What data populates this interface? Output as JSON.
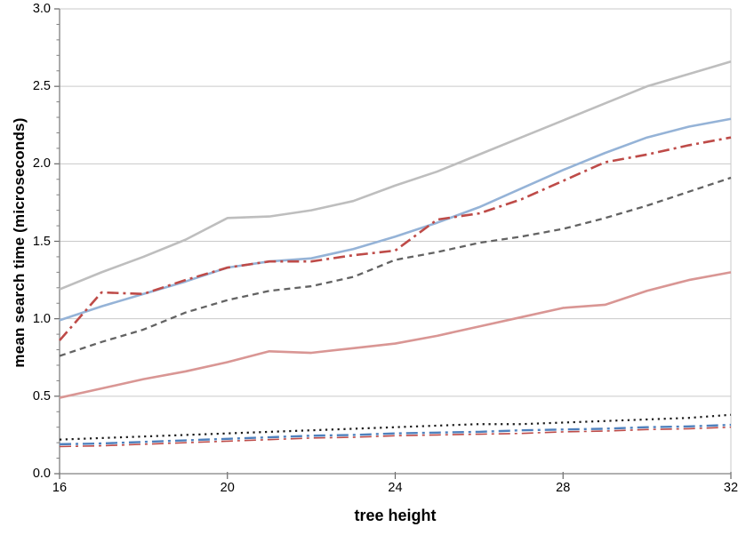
{
  "chart_data": {
    "type": "line",
    "title": "",
    "xlabel": "tree height",
    "ylabel": "mean search time (microseconds)",
    "xlim": [
      16,
      32
    ],
    "ylim": [
      0.0,
      3.0
    ],
    "x_ticks": [
      "16",
      "20",
      "24",
      "28",
      "32"
    ],
    "x_tick_values": [
      16,
      20,
      24,
      28,
      32
    ],
    "y_ticks": [
      "0.0",
      "0.5",
      "1.0",
      "1.5",
      "2.0",
      "2.5",
      "3.0"
    ],
    "y_tick_values": [
      0.0,
      0.5,
      1.0,
      1.5,
      2.0,
      2.5,
      3.0
    ],
    "y_minor_step": 0.1,
    "grid": "horizontal",
    "legend_position": "none",
    "grid_color": "#C9C9C9",
    "axis_color": "#808080",
    "border_color": "#C9C9C9",
    "x": [
      16,
      17,
      18,
      19,
      20,
      21,
      22,
      23,
      24,
      25,
      26,
      27,
      28,
      29,
      30,
      31,
      32
    ],
    "series": [
      {
        "name": "light-gray-solid",
        "color": "#BEBEBE",
        "style": "solid",
        "width": 2.6,
        "values": [
          1.19,
          1.3,
          1.4,
          1.51,
          1.65,
          1.66,
          1.7,
          1.76,
          1.86,
          1.95,
          2.06,
          2.17,
          2.28,
          2.39,
          2.5,
          2.58,
          2.66
        ]
      },
      {
        "name": "dark-gray-dashed",
        "color": "#636363",
        "style": "dashed",
        "width": 2.3,
        "values": [
          0.76,
          0.85,
          0.93,
          1.04,
          1.12,
          1.18,
          1.21,
          1.27,
          1.38,
          1.43,
          1.49,
          1.53,
          1.58,
          1.65,
          1.73,
          1.82,
          1.91
        ]
      },
      {
        "name": "salmon-solid",
        "color": "#D99694",
        "style": "solid",
        "width": 2.6,
        "values": [
          0.49,
          0.55,
          0.61,
          0.66,
          0.72,
          0.79,
          0.78,
          0.81,
          0.84,
          0.89,
          0.95,
          1.01,
          1.07,
          1.09,
          1.18,
          1.25,
          1.3
        ]
      },
      {
        "name": "light-blue-solid",
        "color": "#95B3D7",
        "style": "solid",
        "width": 2.6,
        "values": [
          0.99,
          1.08,
          1.16,
          1.24,
          1.33,
          1.37,
          1.39,
          1.45,
          1.53,
          1.62,
          1.72,
          1.84,
          1.96,
          2.07,
          2.17,
          2.24,
          2.29
        ]
      },
      {
        "name": "dark-red-dash-dot",
        "color": "#BE4B48",
        "style": "dash-dot",
        "width": 2.6,
        "values": [
          0.86,
          1.17,
          1.16,
          1.25,
          1.33,
          1.37,
          1.37,
          1.41,
          1.44,
          1.64,
          1.68,
          1.77,
          1.89,
          2.01,
          2.06,
          2.12,
          2.17
        ]
      },
      {
        "name": "black-dotted",
        "color": "#1A1A1A",
        "style": "dotted",
        "width": 2.2,
        "values": [
          0.22,
          0.23,
          0.24,
          0.25,
          0.26,
          0.27,
          0.28,
          0.29,
          0.3,
          0.31,
          0.32,
          0.32,
          0.33,
          0.34,
          0.35,
          0.36,
          0.38
        ]
      },
      {
        "name": "red-dash-dot-thin",
        "color": "#BE4B48",
        "style": "dash-dot",
        "width": 1.6,
        "values": [
          0.175,
          0.18,
          0.19,
          0.2,
          0.21,
          0.22,
          0.23,
          0.235,
          0.245,
          0.25,
          0.255,
          0.26,
          0.27,
          0.275,
          0.285,
          0.29,
          0.3
        ]
      },
      {
        "name": "medium-blue-dash-dot",
        "color": "#4F81BD",
        "style": "dash-dot",
        "width": 2.4,
        "values": [
          0.19,
          0.195,
          0.205,
          0.215,
          0.225,
          0.235,
          0.245,
          0.25,
          0.26,
          0.265,
          0.27,
          0.28,
          0.285,
          0.29,
          0.3,
          0.305,
          0.315
        ]
      }
    ]
  }
}
